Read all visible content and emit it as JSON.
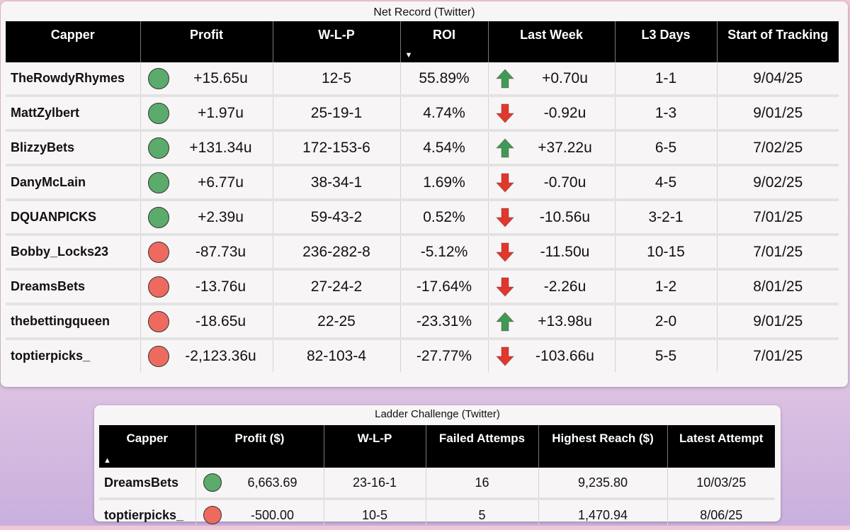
{
  "net_record": {
    "title": "Net Record (Twitter)",
    "columns": [
      "Capper",
      "Profit",
      "W-L-P",
      "ROI",
      "Last Week",
      "L3 Days",
      "Start of Tracking"
    ],
    "rows": [
      {
        "capper": "TheRowdyRhymes",
        "status": "green",
        "profit": "+15.65u",
        "wlp": "12-5",
        "roi": "55.89%",
        "trend": "up",
        "last_week": "+0.70u",
        "l3": "1-1",
        "start": "9/04/25"
      },
      {
        "capper": "MattZylbert",
        "status": "green",
        "profit": "+1.97u",
        "wlp": "25-19-1",
        "roi": "4.74%",
        "trend": "down",
        "last_week": "-0.92u",
        "l3": "1-3",
        "start": "9/01/25"
      },
      {
        "capper": "BlizzyBets",
        "status": "green",
        "profit": "+131.34u",
        "wlp": "172-153-6",
        "roi": "4.54%",
        "trend": "up",
        "last_week": "+37.22u",
        "l3": "6-5",
        "start": "7/02/25"
      },
      {
        "capper": "DanyMcLain",
        "status": "green",
        "profit": "+6.77u",
        "wlp": "38-34-1",
        "roi": "1.69%",
        "trend": "down",
        "last_week": "-0.70u",
        "l3": "4-5",
        "start": "9/02/25"
      },
      {
        "capper": "DQUANPICKS",
        "status": "green",
        "profit": "+2.39u",
        "wlp": "59-43-2",
        "roi": "0.52%",
        "trend": "down",
        "last_week": "-10.56u",
        "l3": "3-2-1",
        "start": "7/01/25"
      },
      {
        "capper": "Bobby_Locks23",
        "status": "red",
        "profit": "-87.73u",
        "wlp": "236-282-8",
        "roi": "-5.12%",
        "trend": "down",
        "last_week": "-11.50u",
        "l3": "10-15",
        "start": "7/01/25"
      },
      {
        "capper": "DreamsBets",
        "status": "red",
        "profit": "-13.76u",
        "wlp": "27-24-2",
        "roi": "-17.64%",
        "trend": "down",
        "last_week": "-2.26u",
        "l3": "1-2",
        "start": "8/01/25"
      },
      {
        "capper": "thebettingqueen",
        "status": "red",
        "profit": "-18.65u",
        "wlp": "22-25",
        "roi": "-23.31%",
        "trend": "up",
        "last_week": "+13.98u",
        "l3": "2-0",
        "start": "9/01/25"
      },
      {
        "capper": "toptierpicks_",
        "status": "red",
        "profit": "-2,123.36u",
        "wlp": "82-103-4",
        "roi": "-27.77%",
        "trend": "down",
        "last_week": "-103.66u",
        "l3": "5-5",
        "start": "7/01/25"
      }
    ]
  },
  "ladder": {
    "title": "Ladder Challenge (Twitter)",
    "columns": [
      "Capper",
      "Profit ($)",
      "W-L-P",
      "Failed Attemps",
      "Highest Reach ($)",
      "Latest Attempt"
    ],
    "rows": [
      {
        "capper": "DreamsBets",
        "status": "green",
        "profit": "6,663.69",
        "wlp": "23-16-1",
        "failed": "16",
        "highest": "9,235.80",
        "latest": "10/03/25"
      },
      {
        "capper": "toptierpicks_",
        "status": "red",
        "profit": "-500.00",
        "wlp": "10-5",
        "failed": "5",
        "highest": "1,470.94",
        "latest": "8/06/25"
      }
    ]
  },
  "icons": {
    "sort_desc": "sort-descending-icon",
    "sort_asc": "sort-ascending-icon",
    "trend_up": "arrow-up-icon",
    "trend_down": "arrow-down-icon"
  },
  "colors": {
    "header_bg": "#000000",
    "positive_dot": "#5bab6b",
    "negative_dot": "#ef6a5e",
    "arrow_up": "#3f9a55",
    "arrow_down": "#e0382d"
  }
}
